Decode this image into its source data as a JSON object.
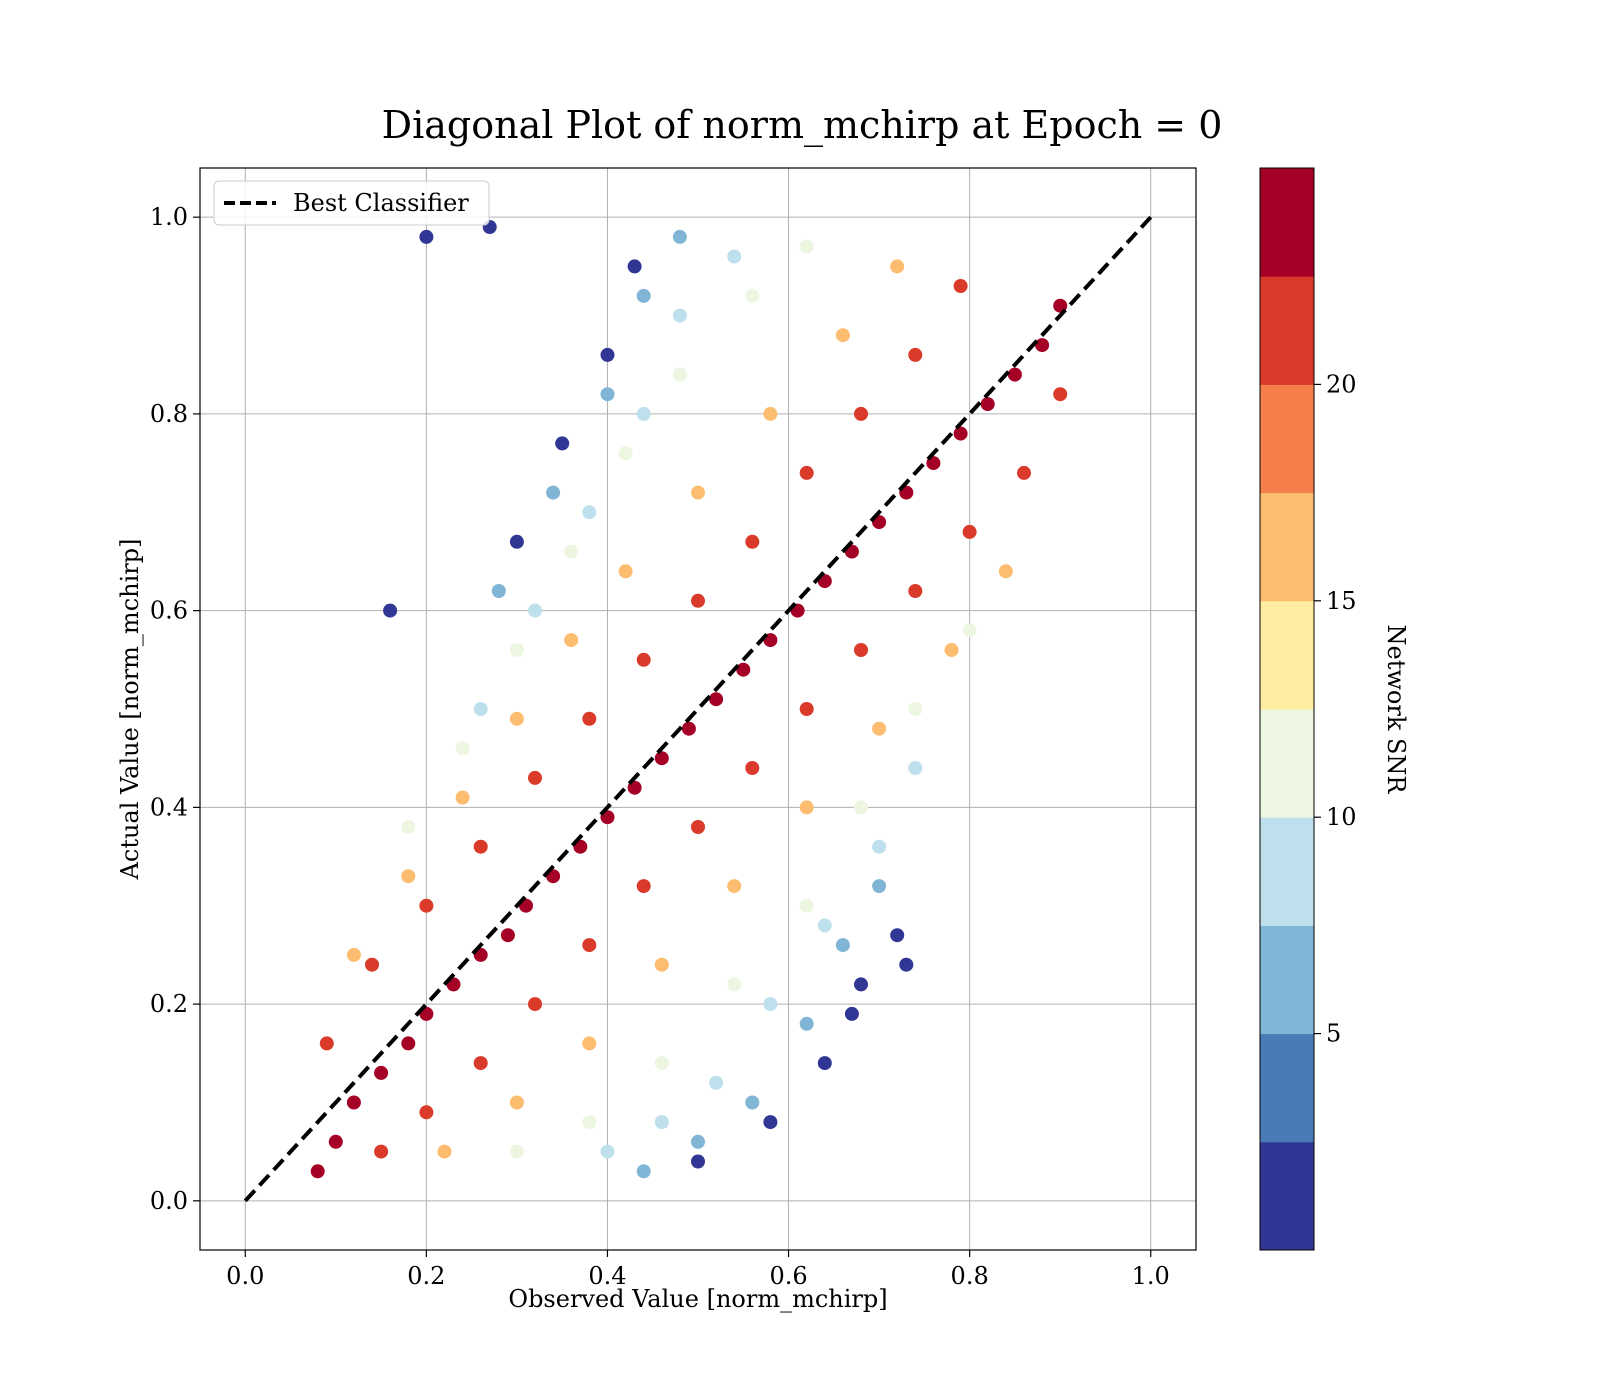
{
  "chart_data": {
    "type": "scatter",
    "title": "Diagonal Plot of norm_mchirp at Epoch = 0",
    "xlabel": "Observed Value [norm_mchirp]",
    "ylabel": "Actual Value [norm_mchirp]",
    "xlim": [
      -0.05,
      1.05
    ],
    "ylim": [
      -0.05,
      1.05
    ],
    "x_ticks": [
      0.0,
      0.2,
      0.4,
      0.6,
      0.8,
      1.0
    ],
    "x_tick_labels": [
      "0.0",
      "0.2",
      "0.4",
      "0.6",
      "0.8",
      "1.0"
    ],
    "y_ticks": [
      0.0,
      0.2,
      0.4,
      0.6,
      0.8,
      1.0
    ],
    "y_tick_labels": [
      "0.0",
      "0.2",
      "0.4",
      "0.6",
      "0.8",
      "1.0"
    ],
    "grid": true,
    "legend": {
      "placement": "upper-left",
      "entries": [
        {
          "label": "Best Classifier",
          "style": "dashed",
          "color": "#000000"
        }
      ]
    },
    "reference_line": {
      "name": "Best Classifier",
      "x": [
        0.0,
        1.0
      ],
      "y": [
        0.0,
        1.0
      ],
      "style": "dashed",
      "color": "#000000"
    },
    "colorbar": {
      "label": "Network SNR",
      "range": [
        0,
        25
      ],
      "ticks": [
        5,
        10,
        15,
        20
      ],
      "tick_labels": [
        "5",
        "10",
        "15",
        "20"
      ],
      "bands": [
        {
          "from": 0.0,
          "to": 2.5,
          "color": "#313695"
        },
        {
          "from": 2.5,
          "to": 5.0,
          "color": "#4a7bb7"
        },
        {
          "from": 5.0,
          "to": 7.5,
          "color": "#80b5d6"
        },
        {
          "from": 7.5,
          "to": 10.0,
          "color": "#bee0ec"
        },
        {
          "from": 10.0,
          "to": 12.5,
          "color": "#ecf6e1"
        },
        {
          "from": 12.5,
          "to": 15.0,
          "color": "#feeda0"
        },
        {
          "from": 15.0,
          "to": 17.5,
          "color": "#fcbd70"
        },
        {
          "from": 17.5,
          "to": 20.0,
          "color": "#f47f4b"
        },
        {
          "from": 20.0,
          "to": 22.5,
          "color": "#da3a2a"
        },
        {
          "from": 22.5,
          "to": 25.0,
          "color": "#a50026"
        }
      ]
    },
    "series": [
      {
        "color_by": "Network SNR",
        "points": [
          [
            0.08,
            0.03,
            24
          ],
          [
            0.1,
            0.06,
            24
          ],
          [
            0.12,
            0.1,
            24
          ],
          [
            0.15,
            0.13,
            24
          ],
          [
            0.18,
            0.16,
            24
          ],
          [
            0.2,
            0.19,
            24
          ],
          [
            0.23,
            0.22,
            24
          ],
          [
            0.26,
            0.25,
            24
          ],
          [
            0.29,
            0.27,
            24
          ],
          [
            0.31,
            0.3,
            24
          ],
          [
            0.34,
            0.33,
            24
          ],
          [
            0.37,
            0.36,
            24
          ],
          [
            0.4,
            0.39,
            24
          ],
          [
            0.43,
            0.42,
            24
          ],
          [
            0.46,
            0.45,
            24
          ],
          [
            0.49,
            0.48,
            24
          ],
          [
            0.52,
            0.51,
            24
          ],
          [
            0.55,
            0.54,
            24
          ],
          [
            0.58,
            0.57,
            24
          ],
          [
            0.61,
            0.6,
            24
          ],
          [
            0.64,
            0.63,
            24
          ],
          [
            0.67,
            0.66,
            24
          ],
          [
            0.7,
            0.69,
            24
          ],
          [
            0.73,
            0.72,
            24
          ],
          [
            0.76,
            0.75,
            24
          ],
          [
            0.79,
            0.78,
            24
          ],
          [
            0.82,
            0.81,
            24
          ],
          [
            0.85,
            0.84,
            24
          ],
          [
            0.88,
            0.87,
            24
          ],
          [
            0.9,
            0.91,
            24
          ],
          [
            0.15,
            0.05,
            21
          ],
          [
            0.2,
            0.09,
            21
          ],
          [
            0.26,
            0.14,
            21
          ],
          [
            0.32,
            0.2,
            21
          ],
          [
            0.38,
            0.26,
            21
          ],
          [
            0.44,
            0.32,
            21
          ],
          [
            0.5,
            0.38,
            21
          ],
          [
            0.56,
            0.44,
            21
          ],
          [
            0.62,
            0.5,
            21
          ],
          [
            0.68,
            0.56,
            21
          ],
          [
            0.74,
            0.62,
            21
          ],
          [
            0.8,
            0.68,
            21
          ],
          [
            0.86,
            0.74,
            21
          ],
          [
            0.9,
            0.82,
            21
          ],
          [
            0.09,
            0.16,
            21
          ],
          [
            0.14,
            0.24,
            21
          ],
          [
            0.2,
            0.3,
            21
          ],
          [
            0.26,
            0.36,
            21
          ],
          [
            0.32,
            0.43,
            21
          ],
          [
            0.38,
            0.49,
            21
          ],
          [
            0.44,
            0.55,
            21
          ],
          [
            0.5,
            0.61,
            21
          ],
          [
            0.56,
            0.67,
            21
          ],
          [
            0.62,
            0.74,
            21
          ],
          [
            0.68,
            0.8,
            21
          ],
          [
            0.74,
            0.86,
            21
          ],
          [
            0.79,
            0.93,
            21
          ],
          [
            0.22,
            0.05,
            16
          ],
          [
            0.3,
            0.1,
            16
          ],
          [
            0.38,
            0.16,
            16
          ],
          [
            0.46,
            0.24,
            16
          ],
          [
            0.54,
            0.32,
            16
          ],
          [
            0.62,
            0.4,
            16
          ],
          [
            0.7,
            0.48,
            16
          ],
          [
            0.78,
            0.56,
            16
          ],
          [
            0.84,
            0.64,
            16
          ],
          [
            0.12,
            0.25,
            16
          ],
          [
            0.18,
            0.33,
            16
          ],
          [
            0.24,
            0.41,
            16
          ],
          [
            0.3,
            0.49,
            16
          ],
          [
            0.36,
            0.57,
            16
          ],
          [
            0.42,
            0.64,
            16
          ],
          [
            0.5,
            0.72,
            16
          ],
          [
            0.58,
            0.8,
            16
          ],
          [
            0.66,
            0.88,
            16
          ],
          [
            0.72,
            0.95,
            16
          ],
          [
            0.3,
            0.05,
            11
          ],
          [
            0.38,
            0.08,
            11
          ],
          [
            0.46,
            0.14,
            11
          ],
          [
            0.54,
            0.22,
            11
          ],
          [
            0.62,
            0.3,
            11
          ],
          [
            0.68,
            0.4,
            11
          ],
          [
            0.74,
            0.5,
            11
          ],
          [
            0.8,
            0.58,
            11
          ],
          [
            0.18,
            0.38,
            11
          ],
          [
            0.24,
            0.46,
            11
          ],
          [
            0.3,
            0.56,
            11
          ],
          [
            0.36,
            0.66,
            11
          ],
          [
            0.42,
            0.76,
            11
          ],
          [
            0.48,
            0.84,
            11
          ],
          [
            0.56,
            0.92,
            11
          ],
          [
            0.62,
            0.97,
            11
          ],
          [
            0.4,
            0.05,
            8
          ],
          [
            0.46,
            0.08,
            8
          ],
          [
            0.52,
            0.12,
            8
          ],
          [
            0.58,
            0.2,
            8
          ],
          [
            0.64,
            0.28,
            8
          ],
          [
            0.7,
            0.36,
            8
          ],
          [
            0.74,
            0.44,
            8
          ],
          [
            0.26,
            0.5,
            8
          ],
          [
            0.32,
            0.6,
            8
          ],
          [
            0.38,
            0.7,
            8
          ],
          [
            0.44,
            0.8,
            8
          ],
          [
            0.48,
            0.9,
            8
          ],
          [
            0.54,
            0.96,
            8
          ],
          [
            0.44,
            0.03,
            5
          ],
          [
            0.5,
            0.06,
            5
          ],
          [
            0.56,
            0.1,
            5
          ],
          [
            0.62,
            0.18,
            5
          ],
          [
            0.66,
            0.26,
            5
          ],
          [
            0.7,
            0.32,
            5
          ],
          [
            0.28,
            0.62,
            5
          ],
          [
            0.34,
            0.72,
            5
          ],
          [
            0.4,
            0.82,
            5
          ],
          [
            0.44,
            0.92,
            5
          ],
          [
            0.48,
            0.98,
            5
          ],
          [
            0.5,
            0.04,
            2
          ],
          [
            0.58,
            0.08,
            2
          ],
          [
            0.64,
            0.14,
            2
          ],
          [
            0.68,
            0.22,
            2
          ],
          [
            0.72,
            0.27,
            2
          ],
          [
            0.73,
            0.24,
            2
          ],
          [
            0.67,
            0.19,
            2
          ],
          [
            0.3,
            0.67,
            2
          ],
          [
            0.35,
            0.77,
            2
          ],
          [
            0.4,
            0.86,
            2
          ],
          [
            0.43,
            0.95,
            2
          ],
          [
            0.27,
            0.99,
            2
          ],
          [
            0.2,
            0.98,
            2
          ],
          [
            0.16,
            0.6,
            2
          ]
        ]
      }
    ]
  }
}
